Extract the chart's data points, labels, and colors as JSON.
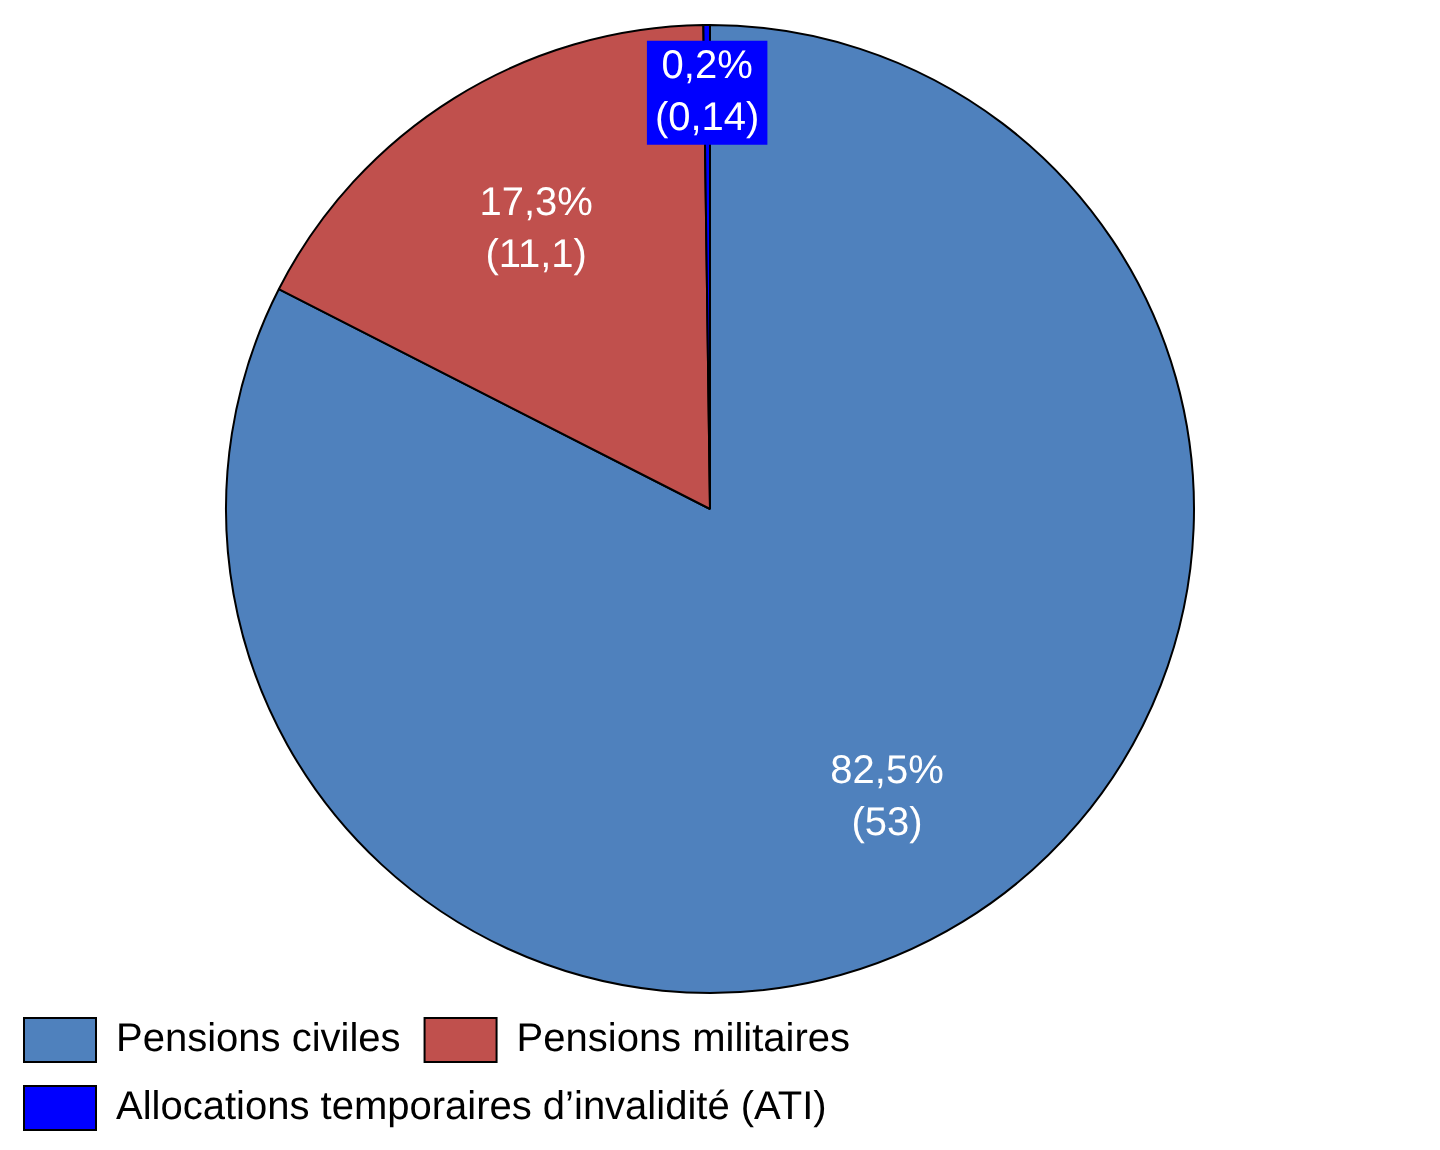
{
  "chart_data": {
    "type": "pie",
    "categories": [
      "Pensions civiles",
      "Pensions militaires",
      "Allocations temporaires d’invalidité (ATI)"
    ],
    "values": [
      53,
      11.1,
      0.14
    ],
    "colors": [
      "#4f81bd",
      "#c0504d",
      "#0000ff"
    ],
    "value_labels": [
      "82,5%\n(53)",
      "17,3%\n(11,1)",
      "0,2%\n(0,14)"
    ],
    "legend": "bottom"
  }
}
